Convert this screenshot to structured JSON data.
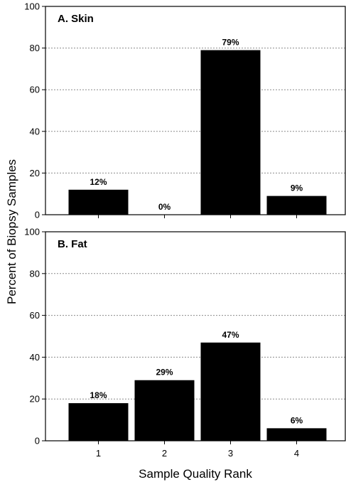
{
  "chart_data": [
    {
      "type": "bar",
      "title": "A. Skin",
      "categories": [
        "1",
        "2",
        "3",
        "4"
      ],
      "values": [
        12,
        0,
        79,
        9
      ],
      "data_labels": [
        "12%",
        "0%",
        "79%",
        "9%"
      ],
      "ylim": [
        0,
        100
      ],
      "yticks": [
        "0",
        "20",
        "40",
        "60",
        "80",
        "100"
      ],
      "grid": "horizontal dotted",
      "bar_color": "#000000"
    },
    {
      "type": "bar",
      "title": "B. Fat",
      "categories": [
        "1",
        "2",
        "3",
        "4"
      ],
      "values": [
        18,
        29,
        47,
        6
      ],
      "data_labels": [
        "18%",
        "29%",
        "47%",
        "6%"
      ],
      "ylim": [
        0,
        100
      ],
      "yticks": [
        "0",
        "20",
        "40",
        "60",
        "80",
        "100"
      ],
      "grid": "horizontal dotted",
      "bar_color": "#000000"
    }
  ],
  "xlabel": "Sample Quality Rank",
  "ylabel": "Percent of Biopsy Samples"
}
